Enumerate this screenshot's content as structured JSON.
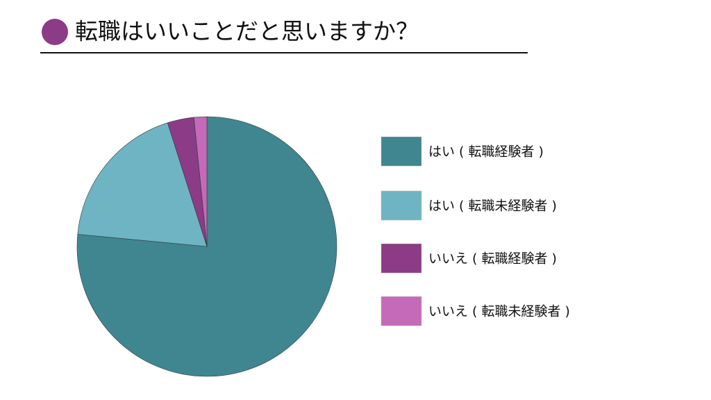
{
  "chart_data": {
    "type": "pie",
    "title": "転職はいいことだと思いますか？",
    "categories": [
      "はい ( 転職経験者 )",
      "はい ( 転職未経験者 )",
      "いいえ ( 転職経験者 )",
      "いいえ ( 転職未経験者 )"
    ],
    "values": [
      76.5,
      18.6,
      3.3,
      1.6
    ],
    "colors": [
      "#3f8690",
      "#6fb4c2",
      "#8c3b87",
      "#c46ab8"
    ],
    "legend": "right"
  }
}
